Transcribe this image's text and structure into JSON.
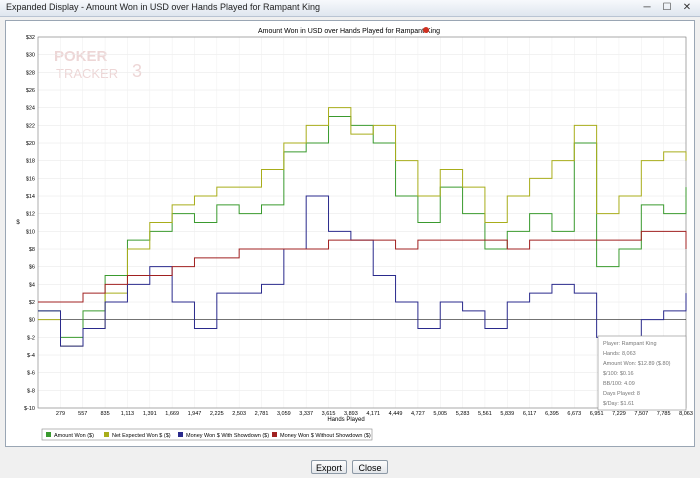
{
  "window": {
    "title": "Expanded Display - Amount Won in USD over Hands Played for Rampant King",
    "min_label": "─",
    "max_label": "☐",
    "close_label": "✕"
  },
  "watermark": {
    "line1": "POKER",
    "line2": "TRACKER",
    "digit": "3"
  },
  "chart_data": {
    "type": "line",
    "title": "Amount Won in USD over Hands Played for Rampant King",
    "xlabel": "Hands Played",
    "ylabel": "$",
    "xlim": [
      0,
      8063
    ],
    "ylim": [
      -10,
      32
    ],
    "x_ticks": [
      "279",
      "557",
      "835",
      "1,113",
      "1,391",
      "1,669",
      "1,947",
      "2,225",
      "2,503",
      "2,781",
      "3,059",
      "3,337",
      "3,615",
      "3,893",
      "4,171",
      "4,449",
      "4,727",
      "5,005",
      "5,283",
      "5,561",
      "5,839",
      "6,117",
      "6,395",
      "6,673",
      "6,951",
      "7,229",
      "7,507",
      "7,785",
      "8,063"
    ],
    "y_ticks": [
      "$32",
      "$30",
      "$28",
      "$26",
      "$24",
      "$22",
      "$20",
      "$18",
      "$16",
      "$14",
      "$12",
      "$10",
      "$8",
      "$6",
      "$4",
      "$2",
      "$0",
      "$-2",
      "$-4",
      "$-6",
      "$-8",
      "$-10"
    ],
    "grid": true,
    "legend_position": "bottom-left",
    "series": [
      {
        "name": "Amount Won ($)",
        "color": "#3a9a2e",
        "x": [
          0,
          280,
          560,
          835,
          1113,
          1391,
          1669,
          1947,
          2225,
          2503,
          2781,
          3059,
          3337,
          3615,
          3893,
          4171,
          4449,
          4727,
          5005,
          5283,
          5561,
          5839,
          6117,
          6395,
          6673,
          6951,
          7229,
          7507,
          7785,
          8063
        ],
        "y": [
          1,
          -2,
          1,
          5,
          9,
          10,
          12,
          11,
          13,
          12,
          13,
          19,
          20,
          23,
          22,
          20,
          14,
          11,
          15,
          12,
          8,
          10,
          12,
          10,
          20,
          6,
          8,
          13,
          12,
          15
        ]
      },
      {
        "name": "Net Expected Won $ ($)",
        "color": "#a8ad1a",
        "x": [
          0,
          280,
          560,
          835,
          1113,
          1391,
          1669,
          1947,
          2225,
          2503,
          2781,
          3059,
          3337,
          3615,
          3893,
          4171,
          4449,
          4727,
          5005,
          5283,
          5561,
          5839,
          6117,
          6395,
          6673,
          6951,
          7229,
          7507,
          7785,
          8063
        ],
        "y": [
          0,
          -3,
          -1,
          3,
          8,
          11,
          13,
          14,
          15,
          15,
          17,
          20,
          22,
          24,
          21,
          22,
          18,
          14,
          17,
          15,
          11,
          14,
          16,
          18,
          22,
          12,
          14,
          18,
          19,
          18
        ]
      },
      {
        "name": "Money Won $ With Showdown ($)",
        "color": "#2a2a8c",
        "x": [
          0,
          280,
          560,
          835,
          1113,
          1391,
          1669,
          1947,
          2225,
          2503,
          2781,
          3059,
          3337,
          3615,
          3893,
          4171,
          4449,
          4727,
          5005,
          5283,
          5561,
          5839,
          6117,
          6395,
          6673,
          6951,
          7229,
          7507,
          7785,
          8063
        ],
        "y": [
          1,
          -3,
          -1,
          2,
          4,
          6,
          2,
          -1,
          3,
          3,
          4,
          8,
          14,
          10,
          9,
          5,
          2,
          -1,
          2,
          1,
          -1,
          2,
          3,
          4,
          3,
          -2,
          -2,
          0,
          1,
          3
        ]
      },
      {
        "name": "Money Won $ Without Showdown ($)",
        "color": "#a02020",
        "x": [
          0,
          280,
          560,
          835,
          1113,
          1391,
          1669,
          1947,
          2225,
          2503,
          2781,
          3059,
          3337,
          3615,
          3893,
          4171,
          4449,
          4727,
          5005,
          5283,
          5561,
          5839,
          6117,
          6395,
          6673,
          6951,
          7229,
          7507,
          7785,
          8063
        ],
        "y": [
          2,
          2,
          3,
          4,
          5,
          5,
          6,
          7,
          7,
          8,
          8,
          8,
          8,
          9,
          9,
          9,
          8,
          9,
          9,
          9,
          9,
          8,
          9,
          9,
          9,
          9,
          9,
          10,
          10,
          8
        ]
      }
    ]
  },
  "stats_box": {
    "player": "Player: Rampant King",
    "hands": "Hands: 8,063",
    "amount_won": "Amount Won: $12.89 ($.80)",
    "per100": "$/100: $0.16",
    "bb100": "BB/100: 4.09",
    "days": "Days Played: 8",
    "per_day": "$/Day: $1.61"
  },
  "buttons": {
    "export": "Export",
    "close": "Close"
  }
}
